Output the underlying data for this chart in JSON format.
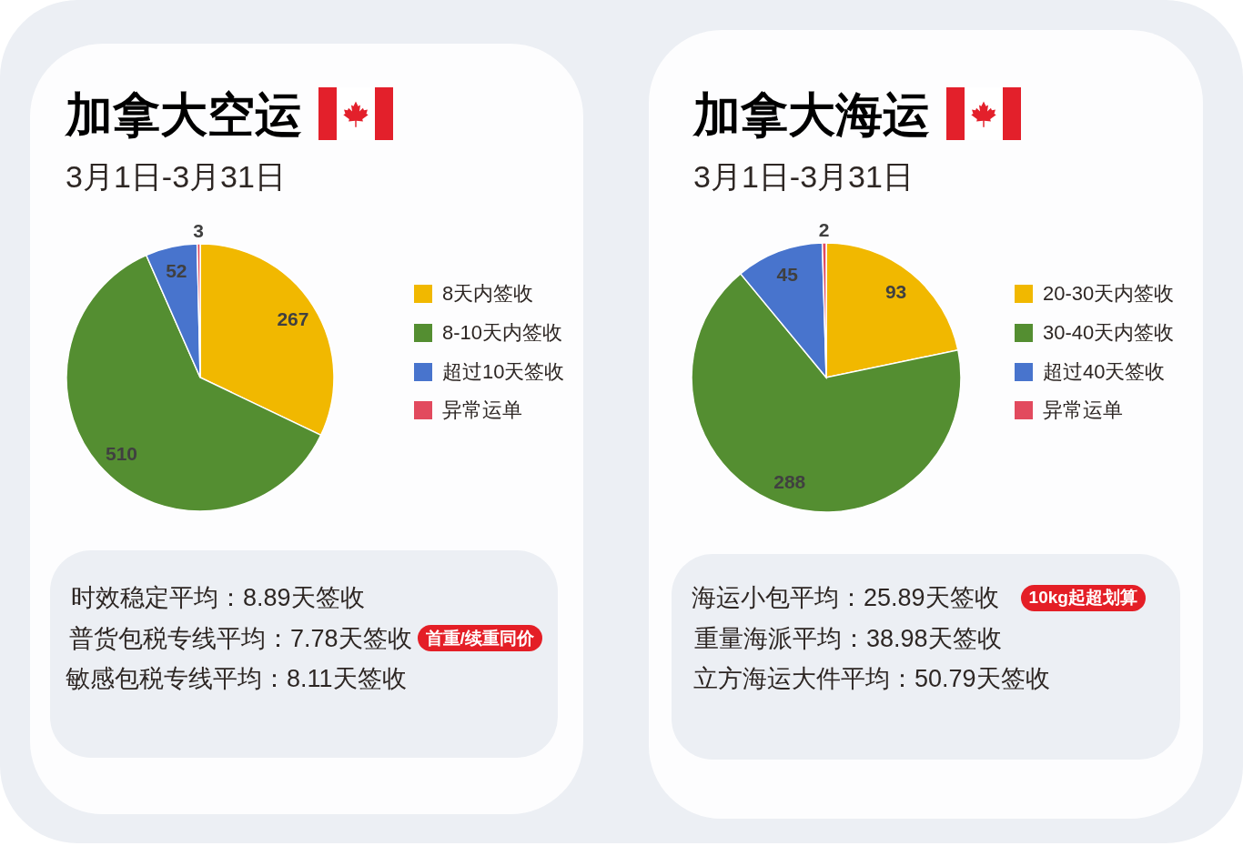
{
  "chart_data": [
    {
      "type": "pie",
      "title": "加拿大空运",
      "subtitle": "3月1日-3月31日",
      "categories": [
        "8天内签收",
        "8-10天内签收",
        "超过10天签收",
        "异常运单"
      ],
      "values": [
        267,
        510,
        52,
        3
      ],
      "colors": [
        "#f1b800",
        "#548e31",
        "#4874cd",
        "#e24a5e"
      ],
      "legend": "right",
      "data_labels": true,
      "annotations": [
        "时效稳定平均：8.89天签收",
        "普货包税专线平均：7.78天签收",
        "首重/续重同价",
        "敏感包税专线平均：8.11天签收"
      ]
    },
    {
      "type": "pie",
      "title": "加拿大海运",
      "subtitle": "3月1日-3月31日",
      "categories": [
        "20-30天内签收",
        "30-40天内签收",
        "超过40天签收",
        "异常运单"
      ],
      "values": [
        93,
        288,
        45,
        2
      ],
      "colors": [
        "#f1b800",
        "#548e31",
        "#4874cd",
        "#e24a5e"
      ],
      "legend": "right",
      "data_labels": true,
      "annotations": [
        "海运小包平均：25.89天签收",
        "10kg起超划算",
        "重量海派平均：38.98天签收",
        "立方海运大件平均：50.79天签收"
      ]
    }
  ]
}
